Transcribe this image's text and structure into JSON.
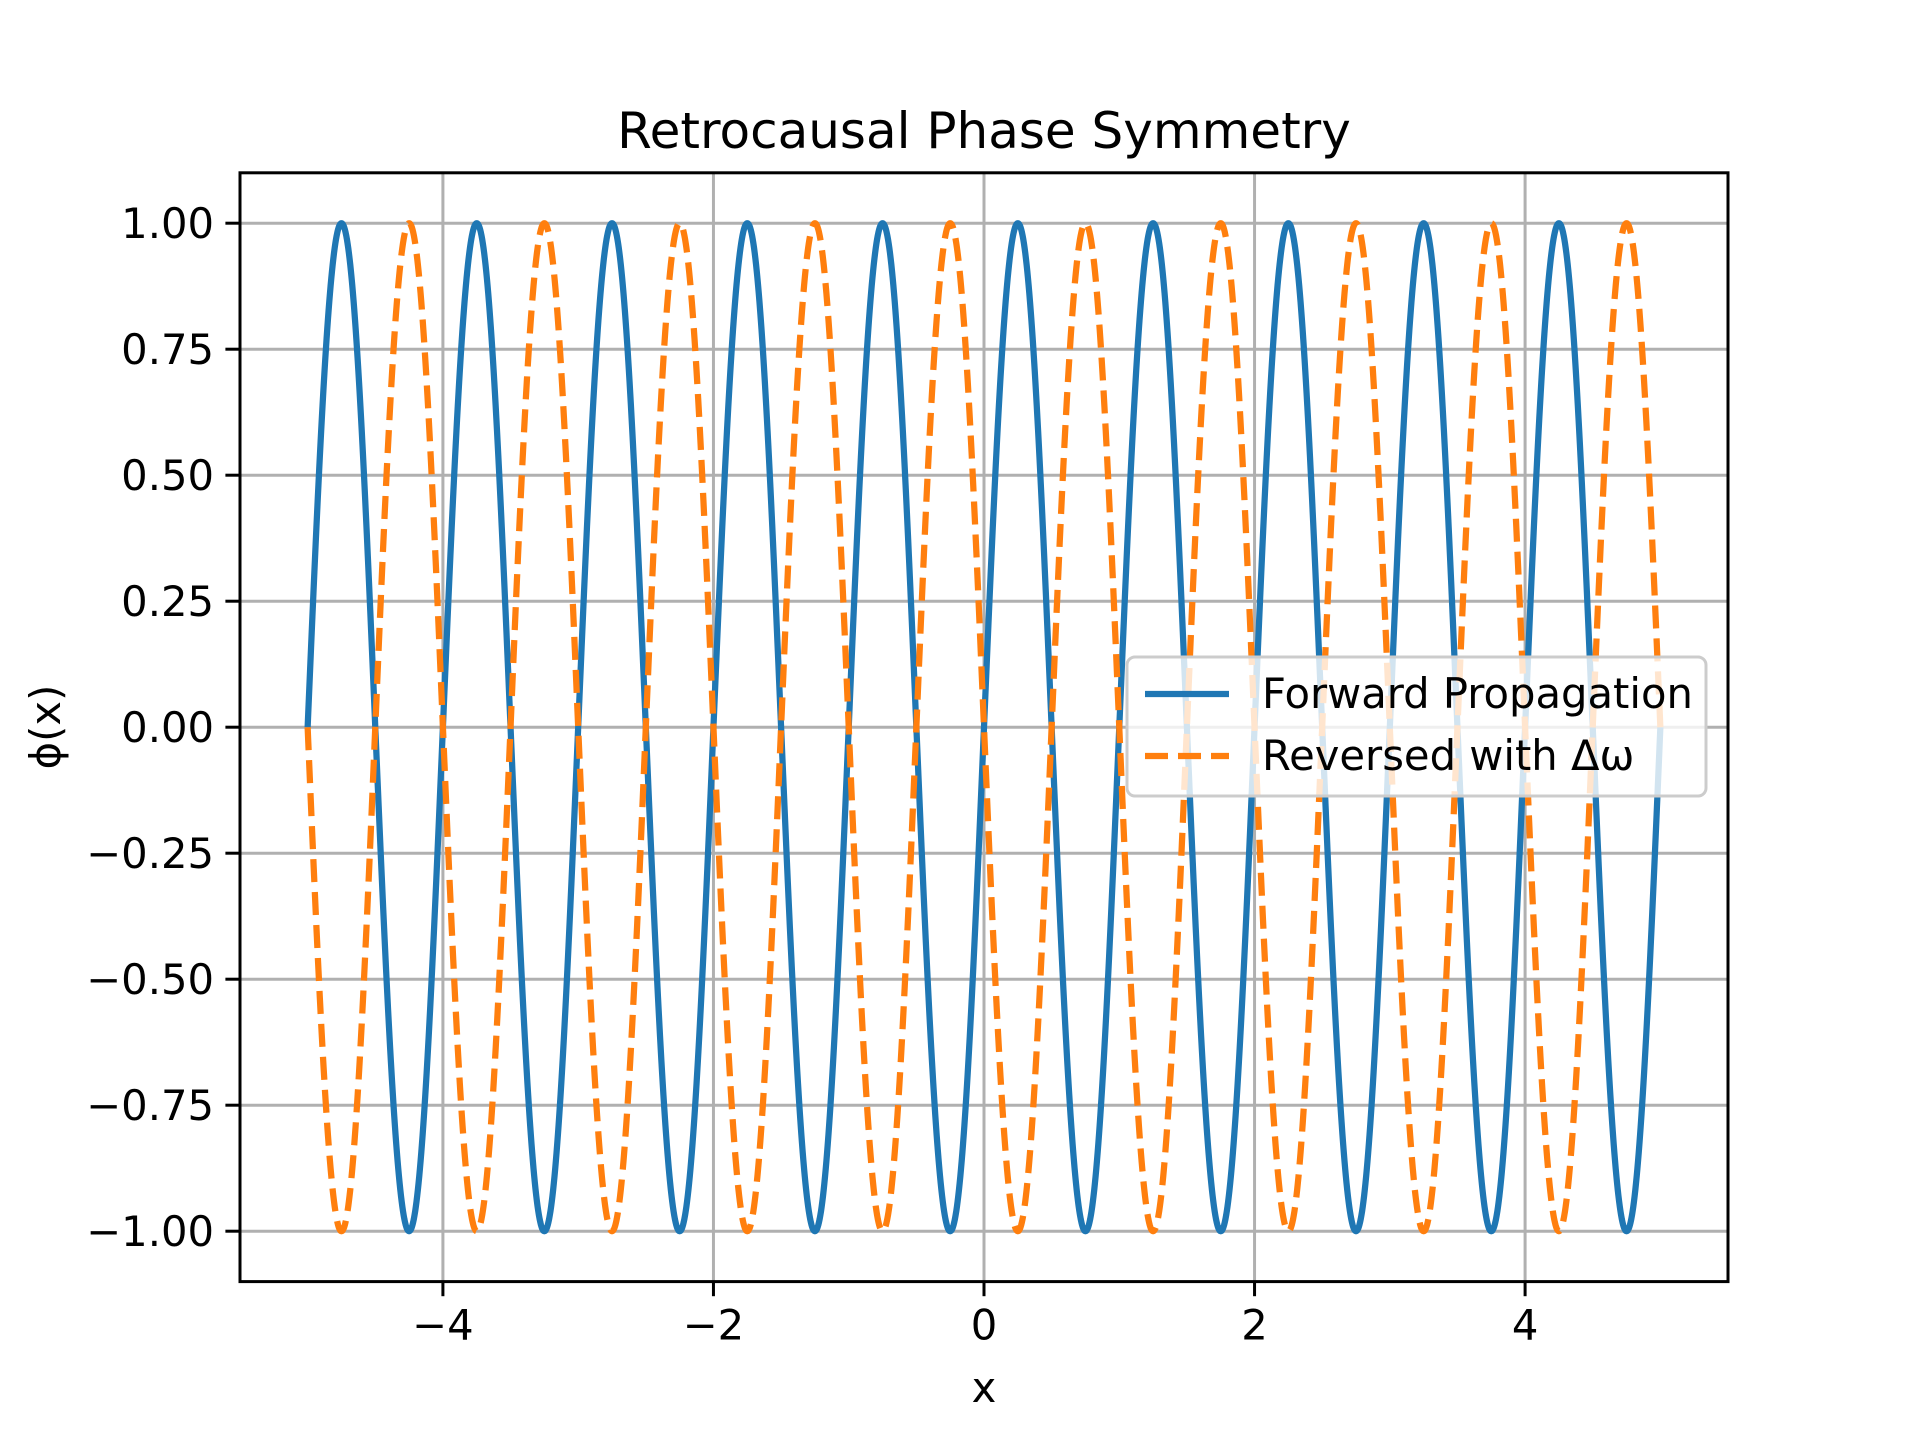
{
  "chart_data": {
    "type": "line",
    "title": "Retrocausal Phase Symmetry",
    "xlabel": "x",
    "ylabel": "ϕ(x)",
    "xlim": [
      -5.5,
      5.5
    ],
    "ylim": [
      -1.1,
      1.1
    ],
    "xticks": [
      -4,
      -2,
      0,
      2,
      4
    ],
    "xtick_labels": [
      "−4",
      "−2",
      "0",
      "2",
      "4"
    ],
    "yticks": [
      -1.0,
      -0.75,
      -0.5,
      -0.25,
      0.0,
      0.25,
      0.5,
      0.75,
      1.0
    ],
    "ytick_labels": [
      "−1.00",
      "−0.75",
      "−0.50",
      "−0.25",
      "0.00",
      "0.25",
      "0.50",
      "0.75",
      "1.00"
    ],
    "grid": true,
    "legend_position": "center-right",
    "x_domain": [
      -5,
      5
    ],
    "series": [
      {
        "name": "Forward Propagation",
        "function": "sin(2πx)",
        "frequency": 1,
        "sign": 1,
        "color": "#1f77b4",
        "style": "solid"
      },
      {
        "name": "Reversed with Δω",
        "function": "sin(-2πx)",
        "frequency": 1,
        "sign": -1,
        "color": "#ff7f0e",
        "style": "dashed"
      }
    ]
  }
}
